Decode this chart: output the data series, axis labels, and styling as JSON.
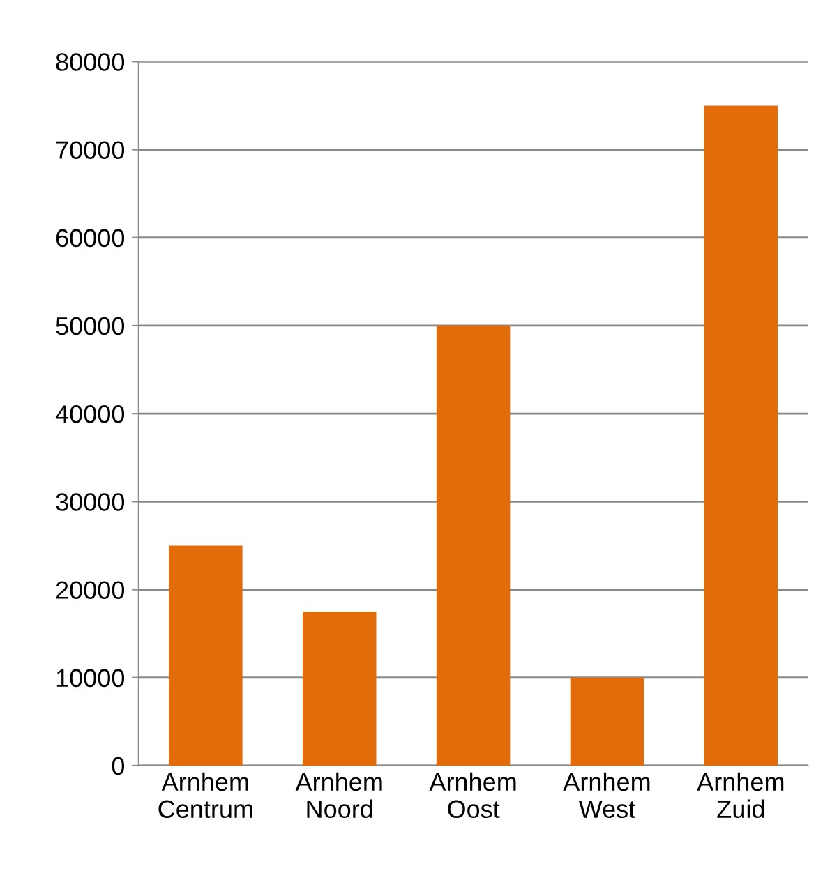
{
  "chart_data": {
    "type": "bar",
    "categories": [
      "Arnhem\nCentrum",
      "Arnhem\nNoord",
      "Arnhem\nOost",
      "Arnhem\nWest",
      "Arnhem\nZuid"
    ],
    "values": [
      25000,
      17500,
      50000,
      10000,
      75000
    ],
    "color": "#e36c0a",
    "ylim": [
      0,
      80000
    ],
    "yticks": [
      0,
      10000,
      20000,
      30000,
      40000,
      50000,
      60000,
      70000,
      80000
    ],
    "grid": "y"
  }
}
